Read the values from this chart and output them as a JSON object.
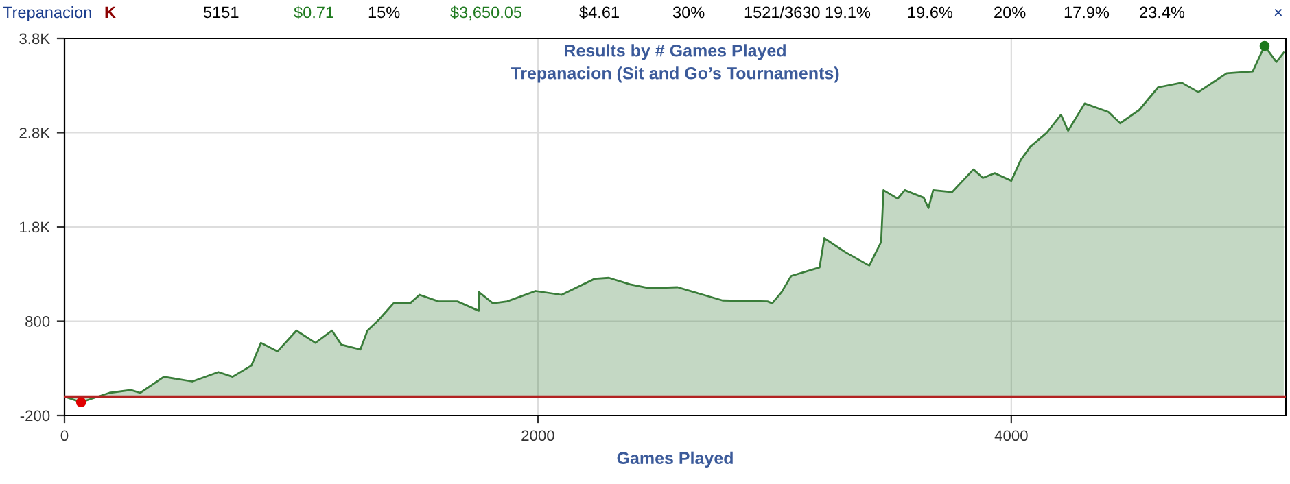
{
  "chart_data": {
    "type": "area",
    "title": "Results by # Games Played",
    "subtitle": "Trepanacion (Sit and Go’s Tournaments)",
    "xlabel": "Games Played",
    "annotations": [
      "Trepanacion",
      "K",
      "5151",
      "$0.71",
      "15%",
      "$3,650.05",
      "$4.61",
      "30%",
      "1521/3630",
      "19.1%",
      "19.6%",
      "20%",
      "17.9%",
      "23.4%",
      "×"
    ],
    "xlim": [
      0,
      5160
    ],
    "xticks": [
      0,
      2000,
      4000
    ],
    "ylim": [
      -200,
      3800
    ],
    "yticks": [
      -200,
      800,
      {
        "value": 1800,
        "label": "1.8K"
      },
      {
        "value": 2800,
        "label": "2.8K"
      },
      {
        "value": 3800,
        "label": "3.8K"
      }
    ],
    "grid": true,
    "ref_lines": [
      {
        "axis": "y",
        "value": 0,
        "label": null,
        "color": "#b22222"
      }
    ],
    "series": [
      {
        "color": "#3a7d3a",
        "x": [
          0,
          70,
          190,
          280,
          320,
          420,
          540,
          650,
          710,
          790,
          830,
          900,
          980,
          1060,
          1130,
          1170,
          1250,
          1280,
          1330,
          1390,
          1460,
          1500,
          1580,
          1660,
          1750,
          1750,
          1810,
          1870,
          1990,
          2100,
          2240,
          2300,
          2390,
          2470,
          2590,
          2780,
          2970,
          2990,
          3030,
          3070,
          3190,
          3210,
          3300,
          3400,
          3450,
          3460,
          3520,
          3550,
          3630,
          3650,
          3670,
          3750,
          3840,
          3880,
          3930,
          4000,
          4040,
          4080,
          4150,
          4210,
          4240,
          4310,
          4410,
          4460,
          4540,
          4620,
          4720,
          4790,
          4910,
          5020,
          5070,
          5120,
          5151
        ],
        "values": [
          0,
          -60,
          40,
          70,
          40,
          210,
          160,
          260,
          210,
          330,
          570,
          480,
          700,
          570,
          700,
          550,
          500,
          700,
          820,
          990,
          990,
          1080,
          1010,
          1010,
          910,
          1110,
          990,
          1010,
          1120,
          1080,
          1250,
          1260,
          1190,
          1150,
          1160,
          1020,
          1010,
          990,
          1110,
          1280,
          1370,
          1680,
          1530,
          1390,
          1640,
          2190,
          2100,
          2190,
          2110,
          2000,
          2190,
          2170,
          2410,
          2320,
          2370,
          2290,
          2510,
          2650,
          2800,
          2990,
          2820,
          3110,
          3020,
          2900,
          3040,
          3280,
          3330,
          3230,
          3430,
          3450,
          3720,
          3550,
          3650
        ]
      },
      {
        "type": "scatter",
        "color": "#e00000",
        "x": [
          70
        ],
        "values": [
          -60
        ]
      },
      {
        "type": "scatter",
        "color": "#1e7a1e",
        "x": [
          5070
        ],
        "values": [
          3720
        ]
      }
    ]
  }
}
